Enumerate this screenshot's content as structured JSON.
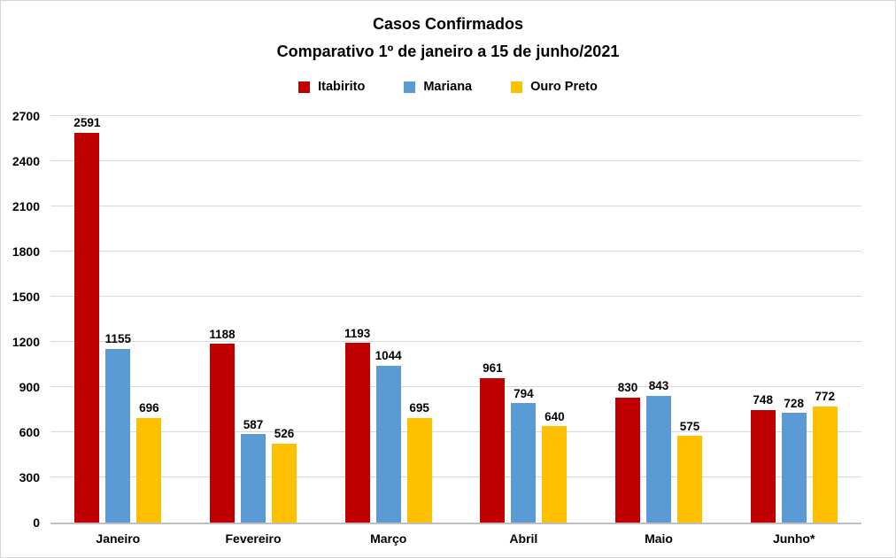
{
  "header": {
    "title": "Casos Confirmados",
    "subtitle": "Comparativo 1º de janeiro a 15 de junho/2021"
  },
  "colors": {
    "itabirito": "#C00000",
    "mariana": "#5B9BD5",
    "ouro_preto": "#FFC000",
    "gridline": "#D9D9D9",
    "axis_line": "#BFBFBF",
    "background": "#FFFFFF",
    "text": "#000000"
  },
  "chart_data": {
    "type": "bar",
    "title": "Casos Confirmados",
    "subtitle": "Comparativo 1º de janeiro a 15 de junho/2021",
    "categories": [
      "Janeiro",
      "Fevereiro",
      "Março",
      "Abril",
      "Maio",
      "Junho*"
    ],
    "series": [
      {
        "name": "Itabirito",
        "color": "#C00000",
        "values": [
          2591,
          1188,
          1193,
          961,
          830,
          748
        ]
      },
      {
        "name": "Mariana",
        "color": "#5B9BD5",
        "values": [
          1155,
          587,
          1044,
          794,
          843,
          728
        ]
      },
      {
        "name": "Ouro Preto",
        "color": "#FFC000",
        "values": [
          696,
          526,
          695,
          640,
          575,
          772
        ]
      }
    ],
    "ylim": [
      0,
      2700
    ],
    "yticks": [
      0,
      300,
      600,
      900,
      1200,
      1500,
      1800,
      2100,
      2400,
      2700
    ],
    "grid": true,
    "legend_position": "top",
    "data_labels": true,
    "xlabel": "",
    "ylabel": ""
  }
}
